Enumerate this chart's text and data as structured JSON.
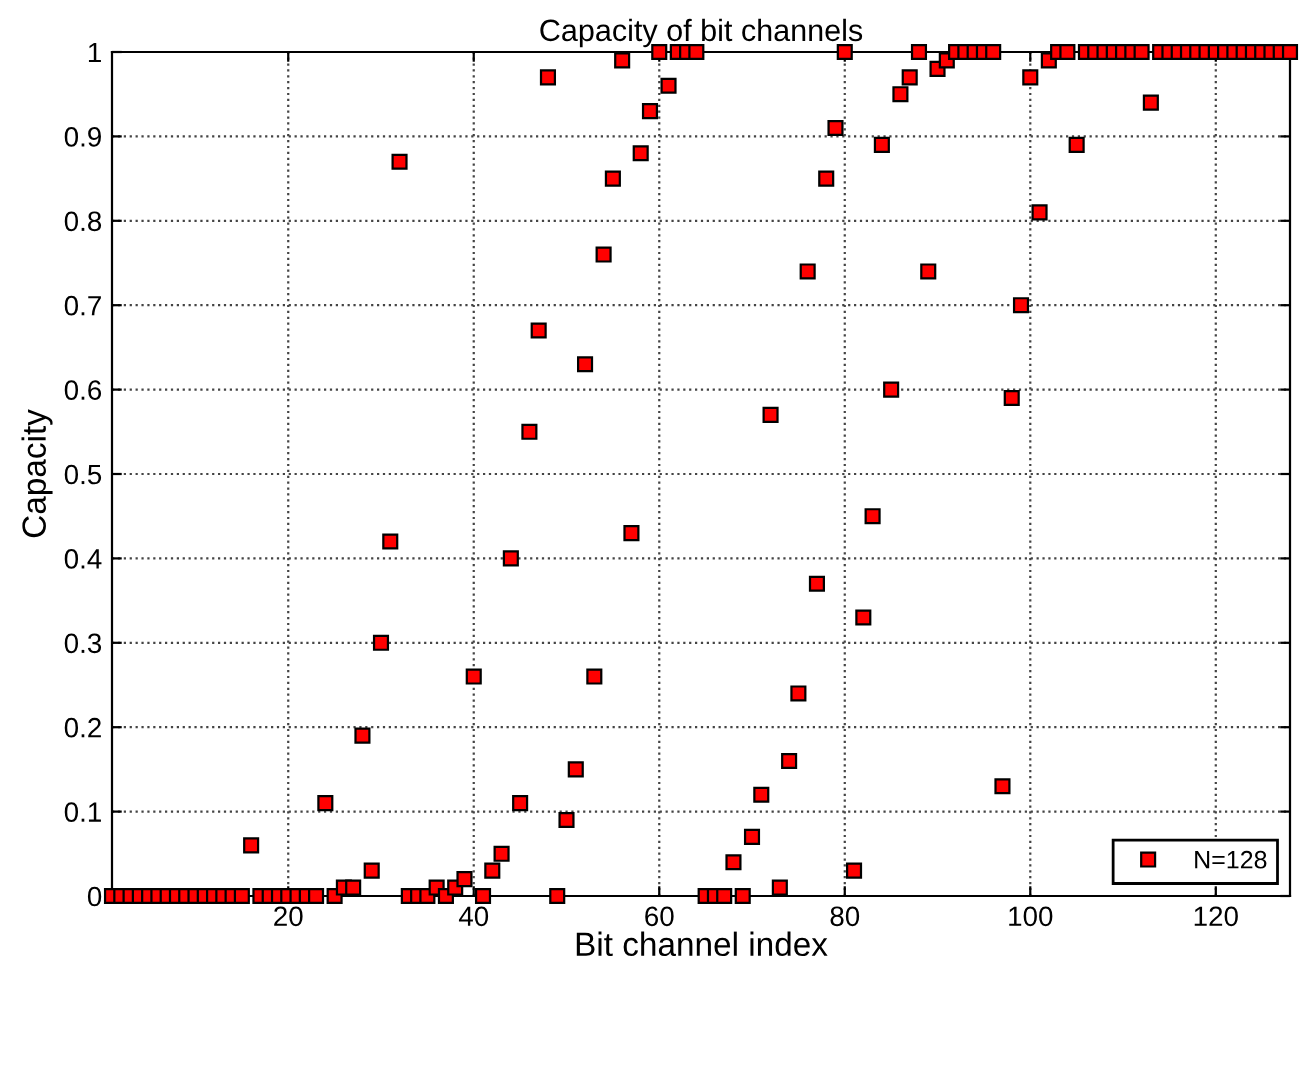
{
  "chart_data": {
    "type": "scatter",
    "title": "Capacity of bit channels",
    "xlabel": "Bit channel index",
    "ylabel": "Capacity",
    "x": [
      1,
      2,
      3,
      4,
      5,
      6,
      7,
      8,
      9,
      10,
      11,
      12,
      13,
      14,
      15,
      16,
      17,
      18,
      19,
      20,
      21,
      22,
      23,
      24,
      25,
      26,
      27,
      28,
      29,
      30,
      31,
      32,
      33,
      34,
      35,
      36,
      37,
      38,
      39,
      40,
      41,
      42,
      43,
      44,
      45,
      46,
      47,
      48,
      49,
      50,
      51,
      52,
      53,
      54,
      55,
      56,
      57,
      58,
      59,
      60,
      61,
      62,
      63,
      64,
      65,
      66,
      67,
      68,
      69,
      70,
      71,
      72,
      73,
      74,
      75,
      76,
      77,
      78,
      79,
      80,
      81,
      82,
      83,
      84,
      85,
      86,
      87,
      88,
      89,
      90,
      91,
      92,
      93,
      94,
      95,
      96,
      97,
      98,
      99,
      100,
      101,
      102,
      103,
      104,
      105,
      106,
      107,
      108,
      109,
      110,
      111,
      112,
      113,
      114,
      115,
      116,
      117,
      118,
      119,
      120,
      121,
      122,
      123,
      124,
      125,
      126,
      127,
      128
    ],
    "series": [
      {
        "name": "N=128",
        "color": "#ff0000",
        "values": [
          0,
          0,
          0,
          0,
          0,
          0,
          0,
          0,
          0,
          0,
          0,
          0,
          0,
          0,
          0,
          0.06,
          0,
          0,
          0,
          0,
          0,
          0,
          0,
          0.11,
          0,
          0.01,
          0.01,
          0.19,
          0.03,
          0.3,
          0.42,
          0.87,
          0,
          0,
          0,
          0.01,
          0,
          0.01,
          0.02,
          0.26,
          0,
          0.03,
          0.05,
          0.4,
          0.11,
          0.55,
          0.67,
          0.97,
          0,
          0.09,
          0.15,
          0.63,
          0.26,
          0.76,
          0.85,
          0.99,
          0.43,
          0.88,
          0.93,
          1,
          0.96,
          1,
          1,
          1,
          0,
          0,
          0,
          0.04,
          0,
          0.07,
          0.12,
          0.57,
          0.01,
          0.16,
          0.24,
          0.74,
          0.37,
          0.85,
          0.91,
          1,
          0.03,
          0.33,
          0.45,
          0.89,
          0.6,
          0.95,
          0.97,
          1,
          0.74,
          0.98,
          0.99,
          1,
          1,
          1,
          1,
          1,
          0.13,
          0.59,
          0.7,
          0.97,
          0.81,
          0.99,
          1,
          1,
          0.89,
          1,
          1,
          1,
          1,
          1,
          1,
          1,
          0.94,
          1,
          1,
          1,
          1,
          1,
          1,
          1,
          1,
          1,
          1,
          1,
          1,
          1,
          1,
          1
        ]
      }
    ],
    "xlim": [
      1,
      128
    ],
    "xticks": [
      20,
      40,
      60,
      80,
      100,
      120
    ],
    "ylim": [
      0,
      1
    ],
    "yticks": [
      0,
      0.1,
      0.2,
      0.3,
      0.4,
      0.5,
      0.6,
      0.7,
      0.8,
      0.9,
      1
    ],
    "grid": true,
    "legend": "bottom right",
    "marker": "square"
  }
}
